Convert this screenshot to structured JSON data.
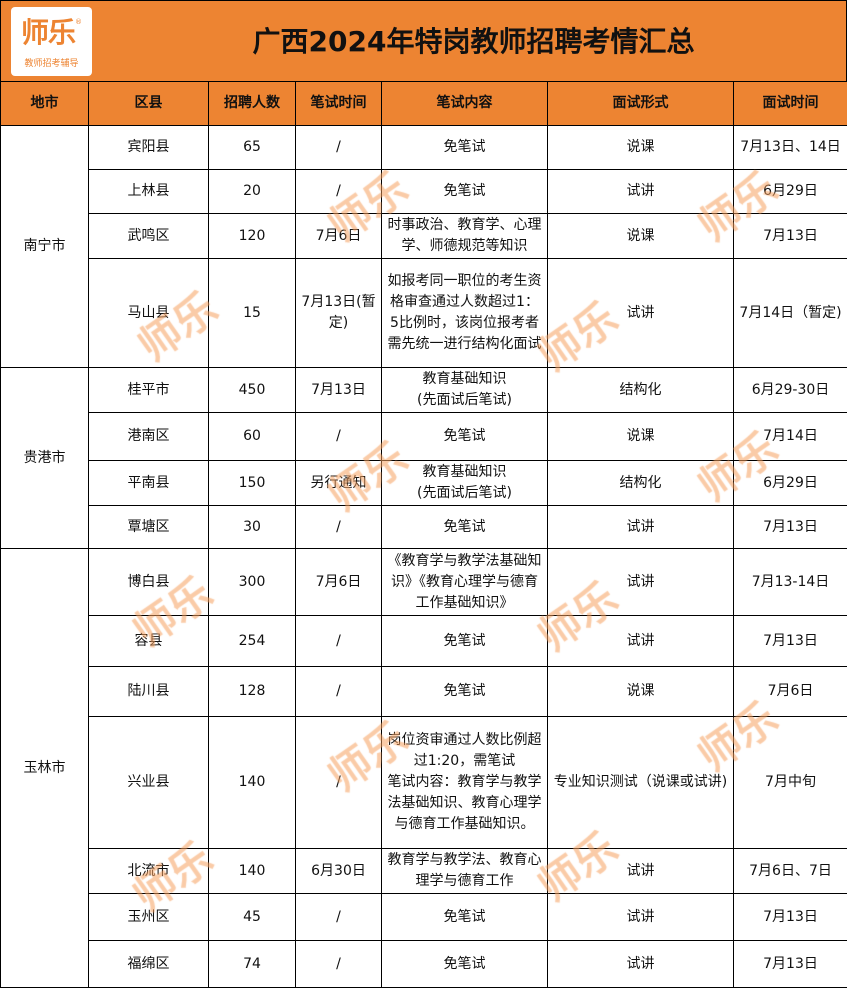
{
  "logo": {
    "name": "师乐",
    "tagline": "教师招考辅导",
    "mark": "®"
  },
  "title": "广西2024年特岗教师招聘考情汇总",
  "headers": [
    "地市",
    "区县",
    "招聘人数",
    "笔试时间",
    "笔试内容",
    "面试形式",
    "面试时间"
  ],
  "groups": [
    {
      "city": "南宁市",
      "rows": [
        [
          "宾阳县",
          "65",
          "/",
          "免笔试",
          "说课",
          "7月13日、14日"
        ],
        [
          "上林县",
          "20",
          "/",
          "免笔试",
          "试讲",
          "6月29日"
        ],
        [
          "武鸣区",
          "120",
          "7月6日",
          "时事政治、教育学、心理学、师德规范等知识",
          "说课",
          "7月13日"
        ],
        [
          "马山县",
          "15",
          "7月13日(暂定)",
          "如报考同一职位的考生资格审查通过人数超过1：5比例时，该岗位报考者需先统一进行结构化面试",
          "试讲",
          "7月14日（暂定)"
        ]
      ]
    },
    {
      "city": "贵港市",
      "rows": [
        [
          "桂平市",
          "450",
          "7月13日",
          "教育基础知识\n(先面试后笔试)",
          "结构化",
          "6月29-30日"
        ],
        [
          "港南区",
          "60",
          "/",
          "免笔试",
          "说课",
          "7月14日"
        ],
        [
          "平南县",
          "150",
          "另行通知",
          "教育基础知识\n(先面试后笔试)",
          "结构化",
          "6月29日"
        ],
        [
          "覃塘区",
          "30",
          "/",
          "免笔试",
          "试讲",
          "7月13日"
        ]
      ]
    },
    {
      "city": "玉林市",
      "rows": [
        [
          "博白县",
          "300",
          "7月6日",
          "《教育学与教学法基础知识》《教育心理学与德育工作基础知识》",
          "试讲",
          "7月13-14日"
        ],
        [
          "容县",
          "254",
          "/",
          "免笔试",
          "试讲",
          "7月13日"
        ],
        [
          "陆川县",
          "128",
          "/",
          "免笔试",
          "说课",
          "7月6日"
        ],
        [
          "兴业县",
          "140",
          "/",
          "岗位资审通过人数比例超过1:20，需笔试\n笔试内容：教育学与教学法基础知识、教育心理学与德育工作基础知识。",
          "专业知识测试（说课或试讲)",
          "7月中旬"
        ],
        [
          "北流市",
          "140",
          "6月30日",
          "教育学与教学法、教育心理学与德育工作",
          "试讲",
          "7月6日、7日"
        ],
        [
          "玉州区",
          "45",
          "/",
          "免笔试",
          "试讲",
          "7月13日"
        ],
        [
          "福绵区",
          "74",
          "/",
          "免笔试",
          "试讲",
          "7月13日"
        ]
      ]
    }
  ],
  "watermark": "师乐",
  "colors": {
    "accent": "#ED8432"
  }
}
